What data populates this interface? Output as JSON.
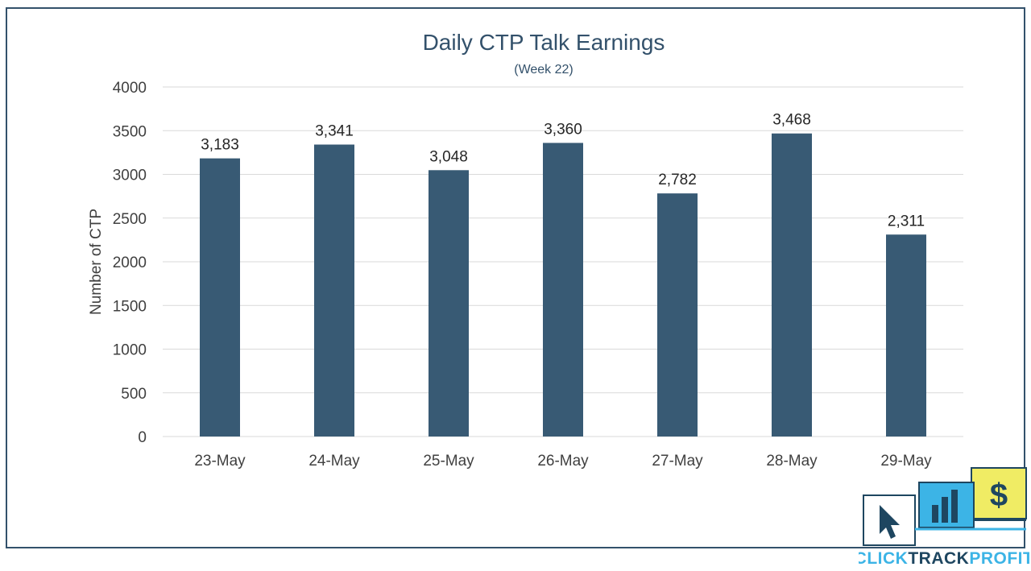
{
  "chart_data": {
    "type": "bar",
    "title": "Daily CTP Talk Earnings",
    "subtitle": "(Week 22)",
    "ylabel": "Number of CTP",
    "xlabel": "",
    "categories": [
      "23-May",
      "24-May",
      "25-May",
      "26-May",
      "27-May",
      "28-May",
      "29-May"
    ],
    "values": [
      3183,
      3341,
      3048,
      3360,
      2782,
      3468,
      2311
    ],
    "data_labels": [
      "3,183",
      "3,341",
      "3,048",
      "3,360",
      "2,782",
      "3,468",
      "2,311"
    ],
    "ylim": [
      0,
      4000
    ],
    "yticks": [
      "0",
      "500",
      "1000",
      "1500",
      "2000",
      "2500",
      "3000",
      "3500",
      "4000"
    ],
    "grid": true,
    "legend": "none",
    "bar_color": "#385a74"
  },
  "logo": {
    "text_click": "CLICK",
    "text_track": "TRACK",
    "text_profit": "PROFIT",
    "icons": [
      "cursor-icon",
      "bar-chart-icon",
      "dollar-icon"
    ],
    "dollar_glyph": "$",
    "colors": {
      "navy": "#1e4660",
      "blue": "#3cb4e6",
      "yellow": "#f0ec64"
    }
  }
}
